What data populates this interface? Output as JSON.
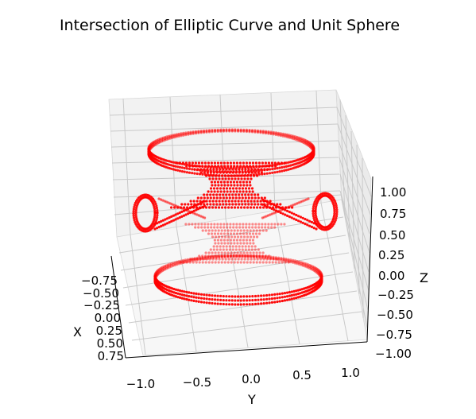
{
  "chart_data": {
    "type": "scatter",
    "title": "Intersection of Elliptic Curve and Unit Sphere",
    "xlabel": "X",
    "ylabel": "Y",
    "zlabel": "Z",
    "xlim": [
      -0.9,
      0.9
    ],
    "ylim": [
      -1.15,
      1.15
    ],
    "zlim": [
      -1.0,
      1.0
    ],
    "x_ticks": [
      "−0.75",
      "−0.50",
      "−0.25",
      "0.00",
      "0.25",
      "0.50",
      "0.75"
    ],
    "y_ticks": [
      "−1.0",
      "−0.5",
      "0.0",
      "0.5",
      "1.0"
    ],
    "z_ticks": [
      "1.00",
      "0.75",
      "0.50",
      "0.25",
      "0.00",
      "−0.25",
      "−0.50",
      "−0.75",
      "−1.00"
    ],
    "grid": true,
    "series": [
      {
        "marker_color": "#ff0000",
        "shape": "points on unit sphere near curve y^2 = x^3 - x (|z| band symmetric)",
        "x": [
          -0.9,
          -0.75,
          -0.6,
          -0.45,
          -0.3,
          -0.15,
          0.0,
          0.15,
          0.3,
          0.45,
          0.6,
          0.75,
          0.9
        ],
        "y": [
          -1.1,
          -0.9,
          -0.7,
          -0.5,
          -0.3,
          -0.1,
          0.0,
          0.1,
          0.3,
          0.5,
          0.7,
          0.9,
          1.1
        ],
        "z": [
          0.95,
          0.8,
          0.65,
          0.4,
          0.2,
          0.1,
          0.0,
          -0.1,
          -0.2,
          -0.4,
          -0.65,
          -0.8,
          -0.95
        ]
      }
    ]
  }
}
